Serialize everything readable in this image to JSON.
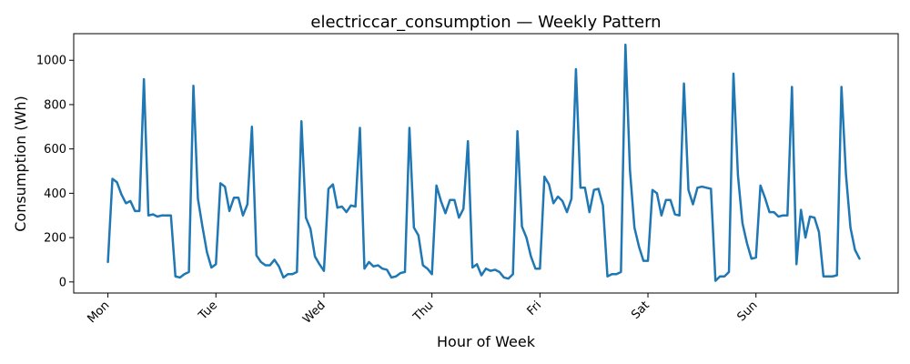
{
  "chart_data": {
    "type": "line",
    "title": "electriccar_consumption — Weekly Pattern",
    "xlabel": "Hour of Week",
    "ylabel": "Consumption (Wh)",
    "x_ticks": [
      {
        "hour": 0,
        "label": "Mon"
      },
      {
        "hour": 24,
        "label": "Tue"
      },
      {
        "hour": 48,
        "label": "Wed"
      },
      {
        "hour": 72,
        "label": "Thu"
      },
      {
        "hour": 96,
        "label": "Fri"
      },
      {
        "hour": 120,
        "label": "Sat"
      },
      {
        "hour": 144,
        "label": "Sun"
      }
    ],
    "y_ticks": [
      0,
      200,
      400,
      600,
      800,
      1000
    ],
    "xlim": [
      -7.6,
      175.6
    ],
    "ylim": [
      -50,
      1120
    ],
    "grid": false,
    "color": "#1f77b4",
    "series": [
      {
        "x": [
          0,
          1,
          2,
          3,
          4,
          5,
          6,
          7,
          8,
          9,
          10,
          11,
          12,
          13,
          14,
          15,
          16,
          17,
          18,
          19,
          20,
          21,
          22,
          23,
          24,
          25,
          26,
          27,
          28,
          29,
          30,
          31,
          32,
          33,
          34,
          35,
          36,
          37,
          38,
          39,
          40,
          41,
          42,
          43,
          44,
          45,
          46,
          47,
          48,
          49,
          50,
          51,
          52,
          53,
          54,
          55,
          56,
          57,
          58,
          59,
          60,
          61,
          62,
          63,
          64,
          65,
          66,
          67,
          68,
          69,
          70,
          71,
          72,
          73,
          74,
          75,
          76,
          77,
          78,
          79,
          80,
          81,
          82,
          83,
          84,
          85,
          86,
          87,
          88,
          89,
          90,
          91,
          92,
          93,
          94,
          95,
          96,
          97,
          98,
          99,
          100,
          101,
          102,
          103,
          104,
          105,
          106,
          107,
          108,
          109,
          110,
          111,
          112,
          113,
          114,
          115,
          116,
          117,
          118,
          119,
          120,
          121,
          122,
          123,
          124,
          125,
          126,
          127,
          128,
          129,
          130,
          131,
          132,
          133,
          134,
          135,
          136,
          137,
          138,
          139,
          140,
          141,
          142,
          143,
          144,
          145,
          146,
          147,
          148,
          149,
          150,
          151,
          152,
          153,
          154,
          155,
          156,
          157,
          158,
          159,
          160,
          161,
          162,
          163,
          164,
          165,
          166,
          167
        ],
        "values": [
          90,
          465,
          450,
          395,
          355,
          365,
          320,
          320,
          915,
          300,
          305,
          295,
          300,
          300,
          300,
          25,
          20,
          35,
          45,
          885,
          375,
          250,
          135,
          65,
          80,
          445,
          430,
          320,
          380,
          380,
          300,
          350,
          700,
          120,
          90,
          75,
          75,
          100,
          70,
          20,
          35,
          35,
          45,
          725,
          290,
          240,
          115,
          80,
          50,
          420,
          440,
          335,
          340,
          315,
          345,
          340,
          695,
          60,
          90,
          70,
          75,
          60,
          55,
          20,
          25,
          40,
          45,
          695,
          245,
          210,
          75,
          60,
          35,
          435,
          365,
          310,
          370,
          370,
          290,
          330,
          635,
          65,
          80,
          30,
          60,
          50,
          55,
          45,
          20,
          15,
          35,
          680,
          250,
          200,
          115,
          60,
          60,
          475,
          440,
          355,
          385,
          365,
          315,
          375,
          960,
          425,
          425,
          315,
          415,
          420,
          345,
          25,
          35,
          35,
          45,
          1070,
          505,
          245,
          160,
          95,
          95,
          415,
          400,
          300,
          370,
          370,
          305,
          300,
          895,
          415,
          350,
          425,
          430,
          425,
          420,
          5,
          25,
          25,
          45,
          940,
          480,
          265,
          175,
          105,
          110,
          435,
          380,
          315,
          315,
          295,
          300,
          300,
          880,
          80,
          325,
          200,
          295,
          290,
          225,
          25,
          25,
          25,
          30,
          880,
          485,
          245,
          145,
          105
        ]
      }
    ]
  }
}
